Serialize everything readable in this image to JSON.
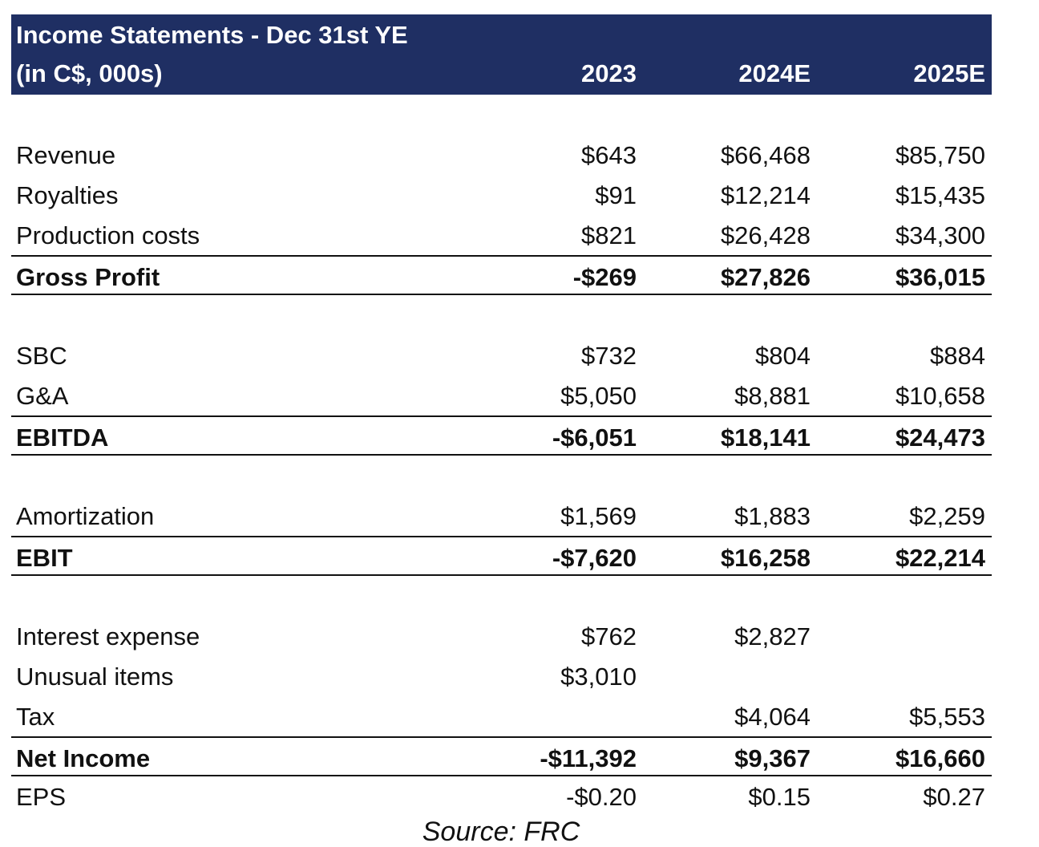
{
  "header": {
    "title": "Income Statements - Dec 31st YE",
    "units": "(in C$, 000s)",
    "years": [
      "2023",
      "2024E",
      "2025E"
    ]
  },
  "rows": {
    "revenue": {
      "label": "Revenue",
      "v": [
        "$643",
        "$66,468",
        "$85,750"
      ]
    },
    "royalties": {
      "label": "Royalties",
      "v": [
        "$91",
        "$12,214",
        "$15,435"
      ]
    },
    "production_costs": {
      "label": "Production costs",
      "v": [
        "$821",
        "$26,428",
        "$34,300"
      ]
    },
    "gross_profit": {
      "label": "Gross Profit",
      "v": [
        "-$269",
        "$27,826",
        "$36,015"
      ]
    },
    "sbc": {
      "label": "SBC",
      "v": [
        "$732",
        "$804",
        "$884"
      ]
    },
    "ga": {
      "label": "G&A",
      "v": [
        "$5,050",
        "$8,881",
        "$10,658"
      ]
    },
    "ebitda": {
      "label": "EBITDA",
      "v": [
        "-$6,051",
        "$18,141",
        "$24,473"
      ]
    },
    "amortization": {
      "label": "Amortization",
      "v": [
        "$1,569",
        "$1,883",
        "$2,259"
      ]
    },
    "ebit": {
      "label": "EBIT",
      "v": [
        "-$7,620",
        "$16,258",
        "$22,214"
      ]
    },
    "interest_expense": {
      "label": "Interest expense",
      "v": [
        "$762",
        "$2,827",
        ""
      ]
    },
    "unusual_items": {
      "label": "Unusual items",
      "v": [
        "$3,010",
        "",
        ""
      ]
    },
    "tax": {
      "label": "Tax",
      "v": [
        "",
        "$4,064",
        "$5,553"
      ]
    },
    "net_income": {
      "label": "Net Income",
      "v": [
        "-$11,392",
        "$9,367",
        "$16,660"
      ]
    },
    "eps": {
      "label": "EPS",
      "v": [
        "-$0.20",
        "$0.15",
        "$0.27"
      ]
    }
  },
  "source": "Source: FRC"
}
